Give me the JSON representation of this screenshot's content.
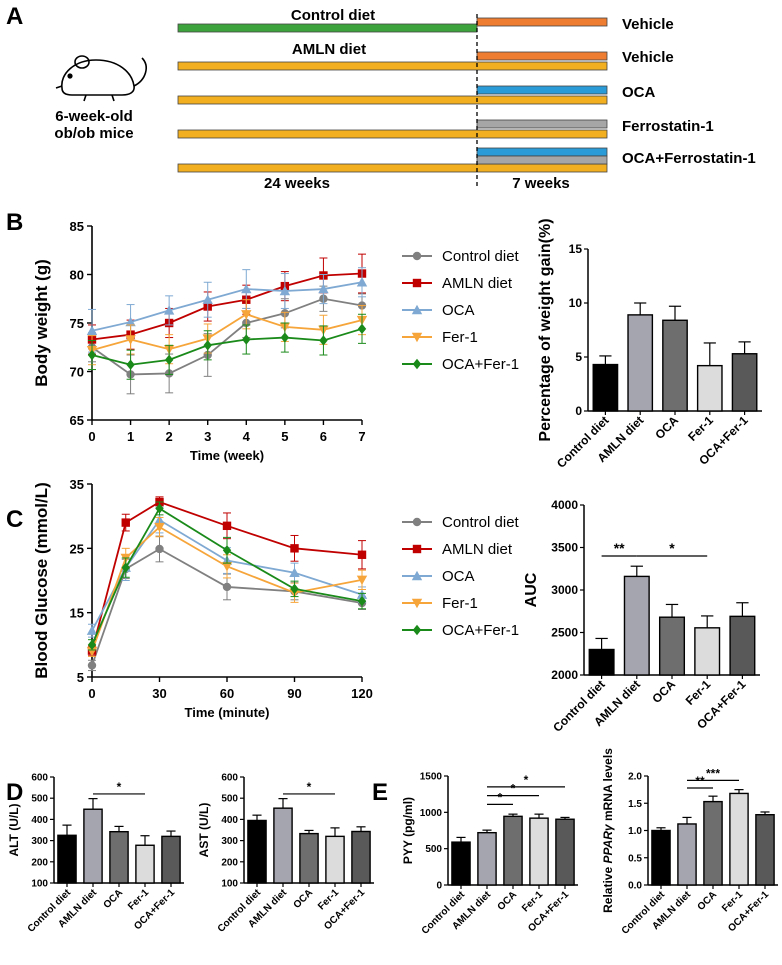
{
  "colors": {
    "control": "#808080",
    "amln": "#c00000",
    "oca": "#7fa9d2",
    "fer": "#f6a53a",
    "combo": "#1a8a1a",
    "green_bar": "#3da43d",
    "yellow_bar": "#f2b021",
    "orange_bar": "#ee7d31",
    "blue_bar": "#2b9bd8",
    "gray_bar": "#a6a6a6",
    "bar_fills": [
      "#000000",
      "#a5a5b0",
      "#6e6e6e",
      "#dcdcdc",
      "#595959"
    ]
  },
  "panel_a": {
    "label": "A",
    "mice_label_1": "6-week-old",
    "mice_label_2": "ob/ob mice",
    "control_diet_label": "Control diet",
    "amln_diet_label": "AMLN diet",
    "period1": "24 weeks",
    "period2": "7 weeks",
    "treatments": [
      "Vehicle",
      "Vehicle",
      "OCA",
      "Ferrostatin-1",
      "OCA+Ferrostatin-1"
    ]
  },
  "chart_data": [
    {
      "id": "B-line",
      "panel": "B",
      "type": "line",
      "xlabel": "Time (week)",
      "ylabel": "Body weight (g)",
      "x": [
        0,
        1,
        2,
        3,
        4,
        5,
        6,
        7
      ],
      "xlim": [
        0,
        7
      ],
      "ylim": [
        65,
        85
      ],
      "xticks": [
        "0",
        "1",
        "2",
        "3",
        "4",
        "5",
        "6",
        "7"
      ],
      "yticks": [
        "65",
        "70",
        "75",
        "80",
        "85"
      ],
      "series": [
        {
          "name": "Control diet",
          "values": [
            72.5,
            69.7,
            69.8,
            71.7,
            75.0,
            76.0,
            77.5,
            76.8
          ],
          "errors": [
            1.5,
            2.0,
            2.0,
            2.2,
            1.5,
            1.5,
            1.3,
            1.2
          ],
          "marker": "circle"
        },
        {
          "name": "AMLN diet",
          "values": [
            73.3,
            73.8,
            75.0,
            76.7,
            77.4,
            78.8,
            79.9,
            80.1
          ],
          "errors": [
            1.5,
            1.5,
            1.5,
            1.5,
            1.5,
            1.5,
            1.8,
            2.0
          ],
          "marker": "square"
        },
        {
          "name": "OCA",
          "values": [
            74.2,
            75.1,
            76.3,
            77.4,
            78.5,
            78.3,
            78.5,
            79.2
          ],
          "errors": [
            2.2,
            1.8,
            1.5,
            1.8,
            2.0,
            1.8,
            1.5,
            1.5
          ],
          "marker": "triangle-up"
        },
        {
          "name": "Fer-1",
          "values": [
            72.2,
            73.3,
            72.3,
            73.4,
            75.9,
            74.6,
            74.3,
            75.3
          ],
          "errors": [
            1.5,
            1.5,
            1.5,
            1.5,
            1.5,
            1.5,
            1.5,
            1.5
          ],
          "marker": "triangle-down"
        },
        {
          "name": "OCA+Fer-1",
          "values": [
            71.7,
            70.7,
            71.2,
            72.7,
            73.3,
            73.5,
            73.2,
            74.4
          ],
          "errors": [
            1.5,
            1.5,
            1.5,
            1.5,
            1.5,
            1.5,
            1.5,
            1.5
          ],
          "marker": "diamond"
        }
      ]
    },
    {
      "id": "B-bar",
      "panel": "B",
      "type": "bar",
      "ylabel": "Percentage of weight gain(%)",
      "categories": [
        "Control diet",
        "AMLN diet",
        "OCA",
        "Fer-1",
        "OCA+Fer-1"
      ],
      "values": [
        4.3,
        8.9,
        8.4,
        4.2,
        5.3
      ],
      "errors": [
        0.8,
        1.1,
        1.3,
        2.1,
        1.1
      ],
      "ylim": [
        0,
        15
      ],
      "yticks": [
        "0",
        "5",
        "10",
        "15"
      ],
      "significance": []
    },
    {
      "id": "C-line",
      "panel": "C",
      "type": "line",
      "xlabel": "Time (minute)",
      "ylabel": "Blood Glucose (mmol/L)",
      "x": [
        0,
        15,
        30,
        60,
        90,
        120
      ],
      "xlim": [
        0,
        120
      ],
      "ylim": [
        5,
        35
      ],
      "xticks": [
        "0",
        "30",
        "60",
        "90",
        "120"
      ],
      "yticks": [
        "5",
        "15",
        "25",
        "35"
      ],
      "series": [
        {
          "name": "Control diet",
          "values": [
            6.8,
            21.8,
            24.9,
            19.0,
            18.3,
            16.5
          ],
          "errors": [
            0.8,
            1.5,
            2.0,
            2.0,
            1.3,
            1.0
          ],
          "marker": "circle"
        },
        {
          "name": "AMLN diet",
          "values": [
            9.1,
            29.0,
            32.2,
            28.5,
            25.0,
            24.0
          ],
          "errors": [
            0.8,
            1.3,
            0.8,
            2.0,
            2.0,
            2.2
          ],
          "marker": "square"
        },
        {
          "name": "OCA",
          "values": [
            12.2,
            22.0,
            29.4,
            23.1,
            21.2,
            17.8
          ],
          "errors": [
            1.0,
            2.0,
            2.0,
            2.0,
            1.5,
            1.2
          ],
          "marker": "triangle-up"
        },
        {
          "name": "Fer-1",
          "values": [
            9.0,
            23.5,
            28.3,
            22.2,
            18.1,
            20.1
          ],
          "errors": [
            0.8,
            1.5,
            1.5,
            1.8,
            1.5,
            1.5
          ],
          "marker": "triangle-down"
        },
        {
          "name": "OCA+Fer-1",
          "values": [
            10.0,
            22.0,
            31.2,
            24.7,
            18.7,
            16.8
          ],
          "errors": [
            0.8,
            1.5,
            1.0,
            2.0,
            1.2,
            1.2
          ],
          "marker": "diamond"
        }
      ]
    },
    {
      "id": "C-bar",
      "panel": "C",
      "type": "bar",
      "ylabel": "AUC",
      "categories": [
        "Control diet",
        "AMLN diet",
        "OCA",
        "Fer-1",
        "OCA+Fer-1"
      ],
      "values": [
        2300,
        3160,
        2680,
        2555,
        2690
      ],
      "errors": [
        130,
        120,
        150,
        140,
        160
      ],
      "ylim": [
        2000,
        4000
      ],
      "yticks": [
        "2000",
        "2500",
        "3000",
        "3500",
        "4000"
      ],
      "significance": [
        {
          "from": 0,
          "to": 1,
          "label": "**",
          "y": 3400
        },
        {
          "from": 1,
          "to": 3,
          "label": "*",
          "y": 3400
        }
      ]
    },
    {
      "id": "D-ALT",
      "panel": "D",
      "type": "bar",
      "ylabel": "ALT (U/L)",
      "categories": [
        "Control diet",
        "AMLN diet",
        "OCA",
        "Fer-1",
        "OCA+Fer-1"
      ],
      "values": [
        325,
        448,
        342,
        278,
        320
      ],
      "errors": [
        48,
        50,
        25,
        45,
        25
      ],
      "ylim": [
        100,
        600
      ],
      "yticks": [
        "100",
        "200",
        "300",
        "400",
        "500",
        "600"
      ],
      "significance": [
        {
          "from": 1,
          "to": 3,
          "label": "*",
          "y": 520
        }
      ]
    },
    {
      "id": "D-AST",
      "panel": "D",
      "type": "bar",
      "ylabel": "AST (U/L)",
      "categories": [
        "Control diet",
        "AMLN diet",
        "OCA",
        "Fer-1",
        "OCA+Fer-1"
      ],
      "values": [
        395,
        453,
        333,
        320,
        343
      ],
      "errors": [
        25,
        45,
        15,
        40,
        22
      ],
      "ylim": [
        100,
        600
      ],
      "yticks": [
        "100",
        "200",
        "300",
        "400",
        "500",
        "600"
      ],
      "significance": [
        {
          "from": 1,
          "to": 3,
          "label": "*",
          "y": 520
        }
      ]
    },
    {
      "id": "E-PYY",
      "panel": "E",
      "type": "bar",
      "ylabel": "PYY (pg/ml)",
      "categories": [
        "Control diet",
        "AMLN diet",
        "OCA",
        "Fer-1",
        "OCA+Fer-1"
      ],
      "values": [
        590,
        720,
        945,
        920,
        905
      ],
      "errors": [
        65,
        35,
        30,
        55,
        25
      ],
      "ylim": [
        0,
        1500
      ],
      "yticks": [
        "0",
        "500",
        "1000",
        "1500"
      ],
      "significance": [
        {
          "from": 1,
          "to": 2,
          "label": "*",
          "y": 1110
        },
        {
          "from": 1,
          "to": 3,
          "label": "*",
          "y": 1230
        },
        {
          "from": 1,
          "to": 4,
          "label": "*",
          "y": 1350
        }
      ]
    },
    {
      "id": "E-PPAR",
      "panel": "E",
      "type": "bar",
      "ylabel_prefix": "Relative ",
      "ylabel_italic": "PPARγ",
      "ylabel_suffix": " mRNA levels",
      "categories": [
        "Control diet",
        "AMLN diet",
        "OCA",
        "Fer-1",
        "OCA+Fer-1"
      ],
      "values": [
        1.0,
        1.12,
        1.53,
        1.68,
        1.29
      ],
      "errors": [
        0.05,
        0.12,
        0.1,
        0.07,
        0.05
      ],
      "ylim": [
        0,
        2.0
      ],
      "yticks": [
        "0.0",
        "0.5",
        "1.0",
        "1.5",
        "2.0"
      ],
      "significance": [
        {
          "from": 1,
          "to": 2,
          "label": "**",
          "y": 1.78
        },
        {
          "from": 1,
          "to": 3,
          "label": "***",
          "y": 1.92
        }
      ]
    }
  ]
}
